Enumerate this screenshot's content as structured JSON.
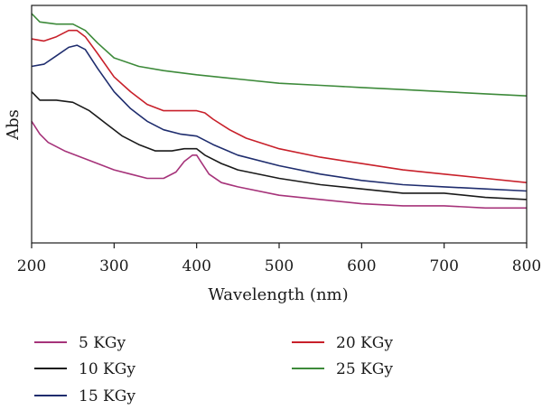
{
  "chart_data": {
    "type": "line",
    "title": "",
    "xlabel": "Wavelength (nm)",
    "ylabel": "Abs",
    "xlim": [
      200,
      800
    ],
    "ylim": [
      0,
      1
    ],
    "xticks": [
      "200",
      "300",
      "400",
      "500",
      "600",
      "700",
      "800"
    ],
    "y_tick_labels": false,
    "grid": false,
    "legend_position": "bottom",
    "series": [
      {
        "name": "5 KGy",
        "color": "#a6337a",
        "x": [
          200,
          210,
          220,
          240,
          260,
          280,
          300,
          320,
          340,
          360,
          375,
          385,
          395,
          400,
          405,
          415,
          430,
          450,
          500,
          550,
          600,
          650,
          700,
          750,
          800
        ],
        "y": [
          0.52,
          0.46,
          0.42,
          0.38,
          0.35,
          0.32,
          0.29,
          0.27,
          0.25,
          0.25,
          0.28,
          0.33,
          0.36,
          0.36,
          0.33,
          0.27,
          0.23,
          0.21,
          0.17,
          0.15,
          0.13,
          0.12,
          0.12,
          0.11,
          0.11
        ]
      },
      {
        "name": "10 KGy",
        "color": "#1a1a1a",
        "x": [
          200,
          210,
          230,
          250,
          270,
          290,
          310,
          330,
          350,
          370,
          385,
          400,
          410,
          430,
          450,
          500,
          550,
          600,
          650,
          700,
          750,
          800
        ],
        "y": [
          0.66,
          0.62,
          0.62,
          0.61,
          0.57,
          0.51,
          0.45,
          0.41,
          0.38,
          0.38,
          0.39,
          0.39,
          0.36,
          0.32,
          0.29,
          0.25,
          0.22,
          0.2,
          0.18,
          0.18,
          0.16,
          0.15
        ]
      },
      {
        "name": "15 KGy",
        "color": "#1f2d6e",
        "x": [
          200,
          215,
          230,
          245,
          255,
          265,
          280,
          300,
          320,
          340,
          360,
          380,
          400,
          420,
          450,
          500,
          550,
          600,
          650,
          700,
          750,
          800
        ],
        "y": [
          0.78,
          0.79,
          0.83,
          0.87,
          0.88,
          0.86,
          0.77,
          0.66,
          0.58,
          0.52,
          0.48,
          0.46,
          0.45,
          0.41,
          0.36,
          0.31,
          0.27,
          0.24,
          0.22,
          0.21,
          0.2,
          0.19
        ]
      },
      {
        "name": "20 KGy",
        "color": "#c8202a",
        "x": [
          200,
          215,
          230,
          245,
          255,
          265,
          280,
          300,
          320,
          340,
          360,
          380,
          400,
          410,
          420,
          440,
          460,
          500,
          550,
          600,
          650,
          700,
          750,
          800
        ],
        "y": [
          0.91,
          0.9,
          0.92,
          0.95,
          0.95,
          0.92,
          0.84,
          0.73,
          0.66,
          0.6,
          0.57,
          0.57,
          0.57,
          0.56,
          0.53,
          0.48,
          0.44,
          0.39,
          0.35,
          0.32,
          0.29,
          0.27,
          0.25,
          0.23
        ]
      },
      {
        "name": "25 KGy",
        "color": "#3d8a3a",
        "x": [
          200,
          210,
          230,
          250,
          265,
          280,
          300,
          330,
          360,
          400,
          450,
          500,
          550,
          600,
          650,
          700,
          750,
          800
        ],
        "y": [
          1.03,
          0.99,
          0.98,
          0.98,
          0.95,
          0.89,
          0.82,
          0.78,
          0.76,
          0.74,
          0.72,
          0.7,
          0.69,
          0.68,
          0.67,
          0.66,
          0.65,
          0.64
        ]
      }
    ]
  }
}
